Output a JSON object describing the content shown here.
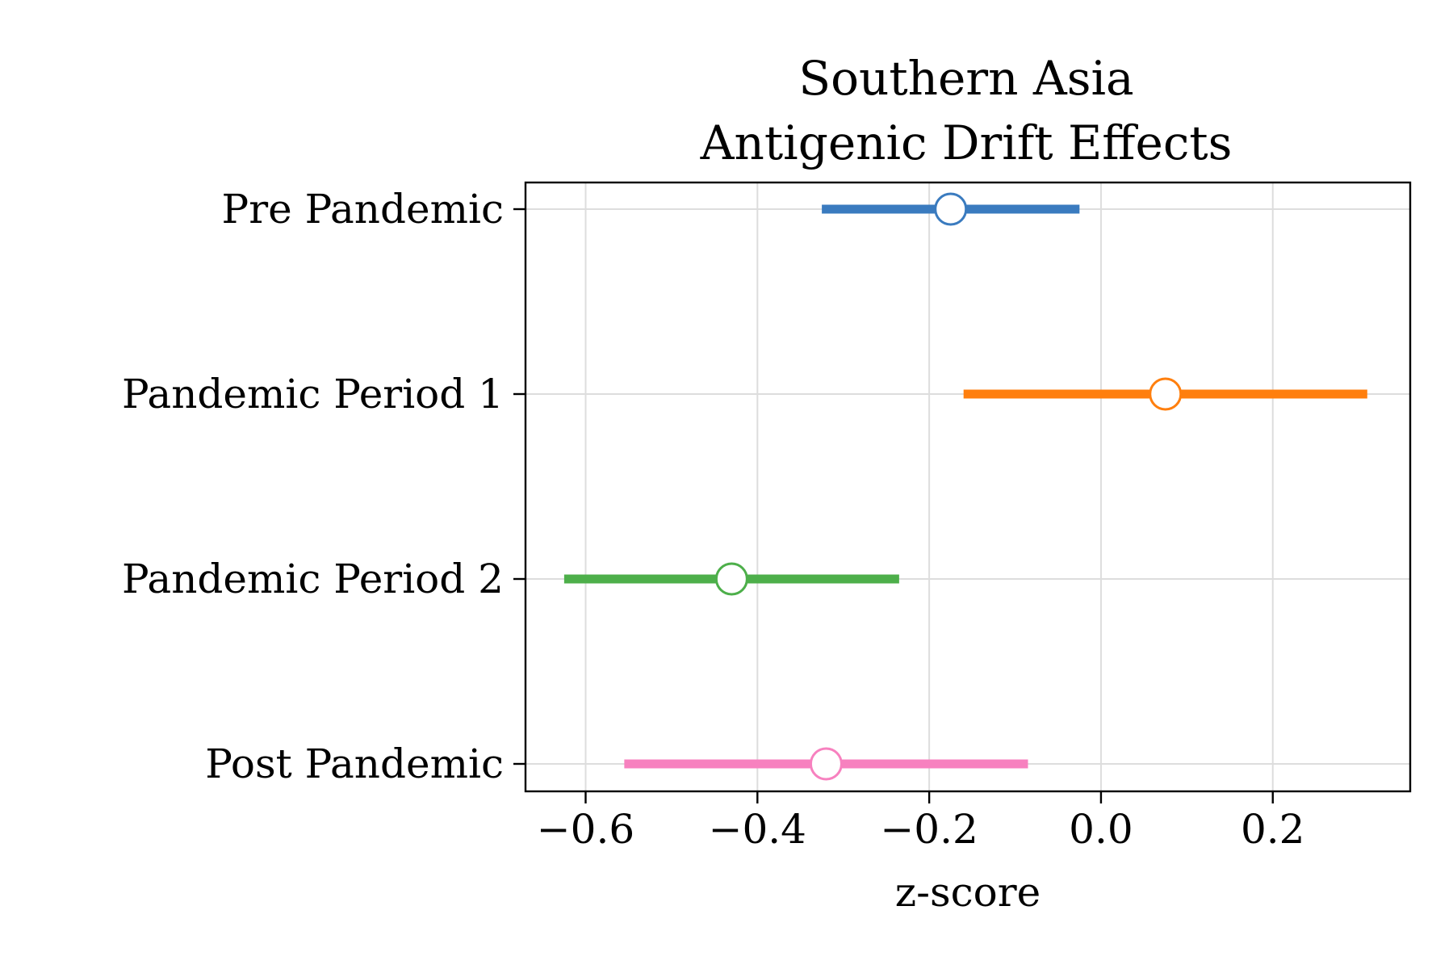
{
  "chart_data": {
    "type": "forest",
    "title": [
      "Southern Asia",
      "Antigenic Drift Effects"
    ],
    "xlabel": "z-score",
    "ylabel": "",
    "xlim": [
      -0.67,
      0.36
    ],
    "xticks": [
      -0.6,
      -0.4,
      -0.2,
      0.0,
      0.2
    ],
    "xtick_labels": [
      "−0.6",
      "−0.4",
      "−0.2",
      "0.0",
      "0.2"
    ],
    "grid": true,
    "categories": [
      "Pre Pandemic",
      "Pandemic Period 1",
      "Pandemic Period 2",
      "Post Pandemic"
    ],
    "series": [
      {
        "category": "Pre Pandemic",
        "estimate": -0.175,
        "lower": -0.325,
        "upper": -0.025,
        "color": "#3a7bbf"
      },
      {
        "category": "Pandemic Period 1",
        "estimate": 0.075,
        "lower": -0.16,
        "upper": 0.31,
        "color": "#ff7f0e"
      },
      {
        "category": "Pandemic Period 2",
        "estimate": -0.43,
        "lower": -0.625,
        "upper": -0.235,
        "color": "#4daf4a"
      },
      {
        "category": "Post Pandemic",
        "estimate": -0.32,
        "lower": -0.555,
        "upper": -0.085,
        "color": "#f781bf"
      }
    ]
  }
}
